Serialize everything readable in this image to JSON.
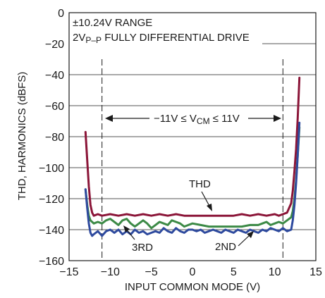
{
  "chart_data": {
    "type": "line",
    "title": "",
    "xlabel": "INPUT COMMON MODE (V)",
    "ylabel": "THD, HARMONICS (dBFS)",
    "xlim": [
      -15,
      15
    ],
    "ylim": [
      -160,
      0
    ],
    "x_ticks": [
      "−15",
      "−10",
      "−5",
      "0",
      "5",
      "10",
      "15"
    ],
    "y_ticks": [
      "0",
      "−20",
      "−40",
      "−60",
      "−80",
      "−100",
      "−120",
      "−140",
      "−160"
    ],
    "grid": true,
    "series": [
      {
        "name": "THD",
        "color": "#8b1538",
        "x": [
          -13,
          -12.8,
          -12.6,
          -12.4,
          -12.2,
          -12,
          -11.5,
          -11,
          -10,
          -9,
          -8,
          -7,
          -6,
          -5,
          -4,
          -3,
          -2,
          -1,
          0,
          1,
          2,
          3,
          4,
          5,
          6,
          7,
          8,
          9,
          10,
          10.5,
          11,
          11.5,
          12,
          12.2,
          12.4,
          12.6,
          12.8,
          13
        ],
        "y": [
          -77,
          -95,
          -112,
          -124,
          -129,
          -131,
          -130,
          -131,
          -130,
          -131,
          -130,
          -131,
          -130,
          -131,
          -130,
          -131,
          -130,
          -131,
          -131,
          -131,
          -131,
          -131,
          -131,
          -131,
          -130,
          -131,
          -130,
          -131,
          -130,
          -131,
          -130,
          -129,
          -123,
          -115,
          -102,
          -88,
          -68,
          -42
        ]
      },
      {
        "name": "2ND",
        "color": "#2e4a9e",
        "x": [
          -13,
          -12.8,
          -12.6,
          -12.4,
          -12.2,
          -12,
          -11.5,
          -11,
          -10.5,
          -10,
          -9.5,
          -9,
          -8.5,
          -8,
          -7.5,
          -7,
          -6.5,
          -6,
          -5.5,
          -5,
          -4.5,
          -4,
          -3.5,
          -3,
          -2.5,
          -2,
          -1.5,
          -1,
          -0.5,
          0,
          0.5,
          1,
          1.5,
          2,
          2.5,
          3,
          3.5,
          4,
          4.5,
          5,
          5.5,
          6,
          6.5,
          7,
          7.5,
          8,
          8.5,
          9,
          9.5,
          10,
          10.5,
          11,
          11.5,
          12,
          12.2,
          12.4,
          12.6,
          12.8,
          13
        ],
        "y": [
          -114,
          -126,
          -136,
          -142,
          -144,
          -143,
          -141,
          -144,
          -141,
          -140,
          -142,
          -140,
          -143,
          -141,
          -143,
          -140,
          -142,
          -141,
          -143,
          -142,
          -141,
          -142,
          -139,
          -141,
          -142,
          -139,
          -141,
          -142,
          -140,
          -140,
          -141,
          -140,
          -142,
          -141,
          -140,
          -141,
          -142,
          -140,
          -141,
          -142,
          -140,
          -141,
          -142,
          -140,
          -141,
          -142,
          -140,
          -141,
          -139,
          -140,
          -141,
          -139,
          -141,
          -140,
          -134,
          -124,
          -110,
          -92,
          -71
        ]
      },
      {
        "name": "3RD",
        "color": "#3c8a46",
        "x": [
          -13,
          -12.8,
          -12.6,
          -12.4,
          -12.2,
          -12,
          -11.5,
          -11,
          -10.5,
          -10,
          -9.5,
          -9,
          -8.5,
          -8,
          -7.5,
          -7,
          -6.5,
          -6,
          -5.5,
          -5,
          -4.5,
          -4,
          -3.5,
          -3,
          -2.5,
          -2,
          -1.5,
          -1,
          -0.5,
          0,
          1,
          2,
          3,
          4,
          5,
          6,
          7,
          8,
          8.5,
          9,
          9.5,
          10,
          10.5,
          11,
          11.5,
          12,
          12.2,
          12.4,
          12.6,
          12.8,
          13
        ],
        "y": [
          -114,
          -124,
          -131,
          -134,
          -135,
          -136,
          -135,
          -136,
          -134,
          -133,
          -135,
          -137,
          -134,
          -133,
          -136,
          -138,
          -136,
          -134,
          -136,
          -139,
          -137,
          -135,
          -136,
          -137,
          -134,
          -135,
          -136,
          -138,
          -137,
          -136,
          -137,
          -138,
          -138,
          -138,
          -138,
          -138,
          -137,
          -137,
          -136,
          -135,
          -137,
          -136,
          -135,
          -136,
          -134,
          -132,
          -128,
          -120,
          -108,
          -92,
          -74
        ]
      }
    ],
    "annotations": {
      "range": "±10.24V RANGE",
      "drive_prefix": "2V",
      "drive_sub": "P–P",
      "drive_suffix": " FULLY DIFFERENTIAL DRIVE",
      "vcm_prefix": "−11V ≤ V",
      "vcm_sub": "CM",
      "vcm_suffix": " ≤ 11V",
      "vcm_lines_x": [
        -11,
        11
      ],
      "label_thd": "THD",
      "label_2nd": "2ND",
      "label_3rd": "3RD"
    }
  }
}
